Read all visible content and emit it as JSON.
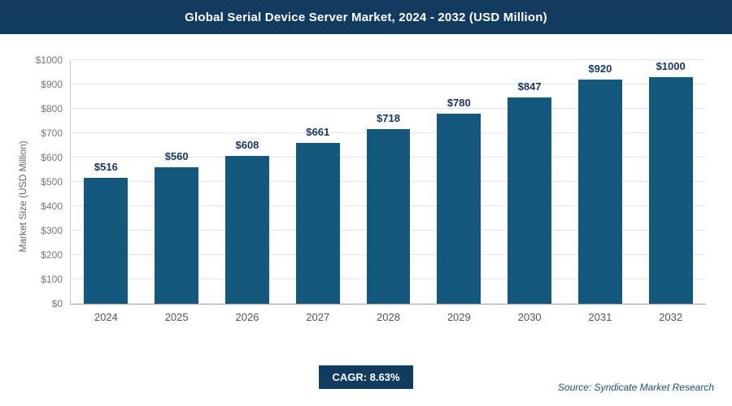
{
  "title": "Global Serial Device Server Market, 2024 - 2032 (USD Million)",
  "chart_data": {
    "type": "bar",
    "categories": [
      "2024",
      "2025",
      "2026",
      "2027",
      "2028",
      "2029",
      "2030",
      "2031",
      "2032"
    ],
    "values": [
      516,
      560,
      608,
      661,
      718,
      780,
      847,
      920,
      1000
    ],
    "value_labels": [
      "$516",
      "$560",
      "$608",
      "$661",
      "$718",
      "$780",
      "$847",
      "$920",
      "$1000"
    ],
    "title": "Global Serial Device Server Market, 2024 - 2032 (USD Million)",
    "xlabel": "",
    "ylabel": "Market Size (USD Million)",
    "ylim": [
      0,
      1000
    ],
    "ytick_step": 100,
    "tick_prefix": "$",
    "grid": true,
    "legend": "none",
    "bar_color": "#15587d",
    "value_label_color": "#17375e"
  },
  "footer": {
    "cagr_label": "CAGR: 8.63%",
    "source": "Source: Syndicate Market Research"
  },
  "colors": {
    "header_bg": "#123c5f",
    "badge_bg": "#123c5f",
    "bar": "#15587d",
    "gridline": "#e4e4e4"
  }
}
